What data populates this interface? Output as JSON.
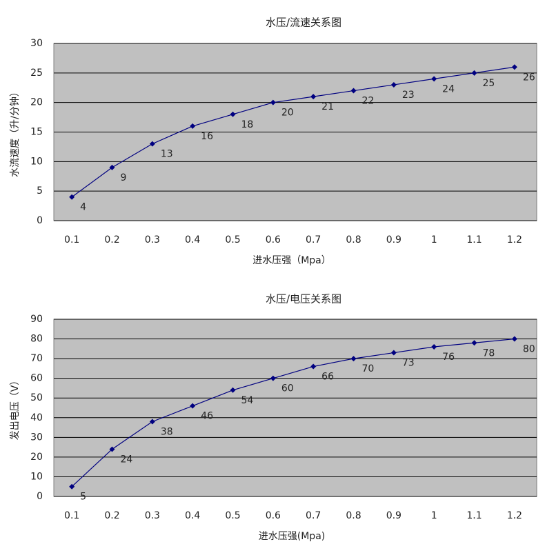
{
  "chart_data": [
    {
      "type": "line",
      "title": "水压/流速关系图",
      "x_label": "进水压强（Mpa）",
      "y_label": "水流速度（升/分钟）",
      "categories": [
        "0.1",
        "0.2",
        "0.3",
        "0.4",
        "0.5",
        "0.6",
        "0.7",
        "0.8",
        "0.9",
        "1",
        "1.1",
        "1.2"
      ],
      "values": [
        4,
        9,
        13,
        16,
        18,
        20,
        21,
        22,
        23,
        24,
        25,
        26
      ],
      "color": "#000080",
      "ylim": [
        0,
        30
      ],
      "yticks": [
        0,
        5,
        10,
        15,
        20,
        25,
        30
      ],
      "grid": true,
      "background": "#c0c0c0"
    },
    {
      "type": "line",
      "title": "水压/电压关系图",
      "x_label": "进水压强(Mpa)",
      "y_label": "发出电压（V）",
      "categories": [
        "0.1",
        "0.2",
        "0.3",
        "0.4",
        "0.5",
        "0.6",
        "0.7",
        "0.8",
        "0.9",
        "1",
        "1.1",
        "1.2"
      ],
      "values": [
        5,
        24,
        38,
        46,
        54,
        60,
        66,
        70,
        73,
        76,
        78,
        80
      ],
      "color": "#000080",
      "ylim": [
        0,
        90
      ],
      "yticks": [
        0,
        10,
        20,
        30,
        40,
        50,
        60,
        70,
        80,
        90
      ],
      "grid": true,
      "background": "#c0c0c0"
    }
  ]
}
